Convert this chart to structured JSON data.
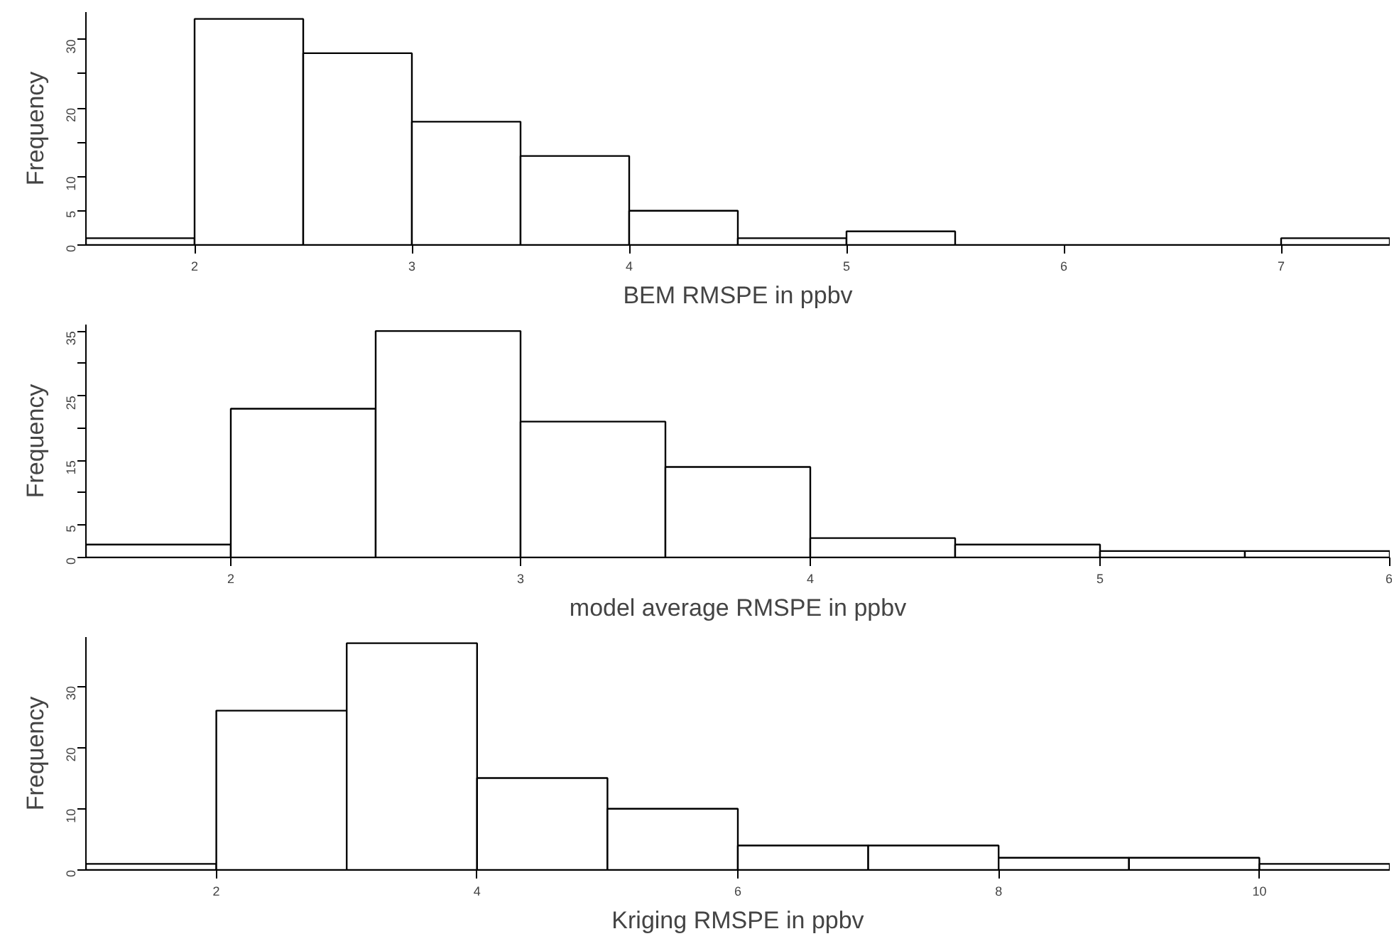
{
  "chart_data": [
    {
      "type": "histogram",
      "xlabel": "BEM RMSPE in ppbv",
      "ylabel": "Frequency",
      "color": "#ffffff",
      "grid": false,
      "bins": [
        1.5,
        2,
        2.5,
        3,
        3.5,
        4,
        4.5,
        5,
        5.5,
        6,
        6.5,
        7,
        7.5
      ],
      "values": [
        1,
        33,
        28,
        18,
        13,
        5,
        1,
        2,
        0,
        0,
        0,
        1
      ],
      "xlim": [
        1.5,
        7.5
      ],
      "xticks": [
        2,
        3,
        4,
        5,
        6,
        7
      ],
      "ylim": [
        0,
        34
      ],
      "yticks": [
        0,
        5,
        10,
        {
          "value": 15,
          "label": null
        },
        20,
        {
          "value": 25,
          "label": null
        },
        30
      ]
    },
    {
      "type": "histogram",
      "xlabel": "model average RMSPE in ppbv",
      "ylabel": "Frequency",
      "color": "#ffffff",
      "grid": false,
      "bins": [
        1.5,
        2,
        2.5,
        3,
        3.5,
        4,
        4.5,
        5,
        5.5,
        6
      ],
      "values": [
        2,
        23,
        35,
        21,
        14,
        3,
        2,
        1,
        1
      ],
      "xlim": [
        1.5,
        6
      ],
      "xticks": [
        2,
        3,
        4,
        5,
        6
      ],
      "ylim": [
        0,
        36
      ],
      "yticks": [
        0,
        5,
        {
          "value": 10,
          "label": null
        },
        15,
        {
          "value": 20,
          "label": null
        },
        25,
        {
          "value": 30,
          "label": null
        },
        35
      ]
    },
    {
      "type": "histogram",
      "xlabel": "Kriging RMSPE in ppbv",
      "ylabel": "Frequency",
      "color": "#ffffff",
      "grid": false,
      "bins": [
        1,
        2,
        3,
        4,
        5,
        6,
        7,
        8,
        9,
        10,
        11
      ],
      "values": [
        1,
        26,
        37,
        15,
        10,
        4,
        4,
        2,
        2,
        1
      ],
      "xlim": [
        1,
        11
      ],
      "xticks": [
        2,
        4,
        6,
        8,
        10
      ],
      "ylim": [
        0,
        38
      ],
      "yticks": [
        0,
        10,
        20,
        30
      ]
    }
  ]
}
